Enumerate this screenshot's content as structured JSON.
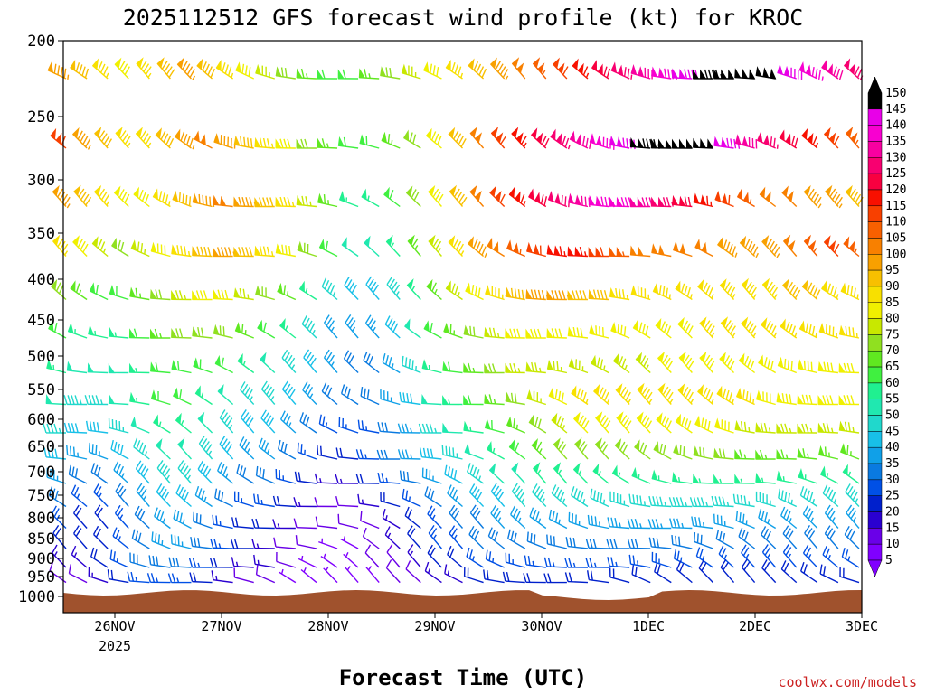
{
  "chart_data": {
    "type": "wind-barb profile",
    "title": "2025112512 GFS forecast wind profile (kt) for KROC",
    "xlabel": "Forecast Time (UTC)",
    "credit": "coolwx.com/models",
    "x_ticks": [
      "26NOV",
      "27NOV",
      "28NOV",
      "29NOV",
      "30NOV",
      "1DEC",
      "2DEC",
      "3DEC"
    ],
    "x_year_label": "2025",
    "y_ticks": [
      200,
      250,
      300,
      350,
      400,
      450,
      500,
      550,
      600,
      650,
      700,
      750,
      800,
      850,
      900,
      950,
      1000
    ],
    "y_unit": "hPa",
    "colorbar": {
      "ticks": [
        5,
        10,
        15,
        20,
        25,
        30,
        35,
        40,
        45,
        50,
        55,
        60,
        65,
        70,
        75,
        80,
        85,
        90,
        95,
        100,
        105,
        110,
        115,
        120,
        125,
        130,
        135,
        140,
        145,
        150
      ],
      "colors": [
        "#8000ff",
        "#6a00e8",
        "#2a00d0",
        "#0020cc",
        "#0050e6",
        "#0a7ae0",
        "#10a0e8",
        "#18c0e8",
        "#20d8cc",
        "#20e8b0",
        "#20f090",
        "#40f040",
        "#60e820",
        "#90e020",
        "#c8e800",
        "#f0f000",
        "#f8e000",
        "#f8c000",
        "#f8a000",
        "#f88000",
        "#f86000",
        "#f84000",
        "#f81000",
        "#f80040",
        "#f80070",
        "#f800a0",
        "#f800d0",
        "#e800e8",
        "#000000"
      ]
    },
    "levels": [
      {
        "p": 225,
        "speeds": [
          95,
          90,
          85,
          80,
          85,
          90,
          95,
          90,
          85,
          80,
          75,
          70,
          65,
          60,
          60,
          65,
          70,
          75,
          80,
          85,
          90,
          95,
          100,
          105,
          110,
          115,
          120,
          125,
          130,
          135,
          140,
          145,
          150,
          150,
          150,
          140,
          135,
          130,
          125
        ]
      },
      {
        "p": 275,
        "speeds": [
          110,
          95,
          90,
          85,
          85,
          90,
          95,
          100,
          95,
          90,
          85,
          80,
          70,
          65,
          60,
          60,
          65,
          70,
          80,
          90,
          100,
          110,
          115,
          120,
          125,
          130,
          135,
          140,
          145,
          150,
          150,
          150,
          140,
          130,
          125,
          120,
          115,
          110,
          105
        ]
      },
      {
        "p": 325,
        "speeds": [
          95,
          90,
          85,
          80,
          80,
          85,
          90,
          95,
          100,
          95,
          90,
          85,
          75,
          65,
          55,
          55,
          60,
          70,
          80,
          90,
          100,
          110,
          115,
          120,
          125,
          130,
          135,
          135,
          130,
          125,
          120,
          115,
          110,
          105,
          100,
          100,
          95,
          95,
          90
        ]
      },
      {
        "p": 375,
        "speeds": [
          85,
          80,
          75,
          70,
          75,
          80,
          85,
          90,
          95,
          90,
          85,
          80,
          70,
          60,
          50,
          50,
          55,
          65,
          75,
          85,
          95,
          100,
          105,
          110,
          115,
          115,
          110,
          105,
          100,
          100,
          100,
          100,
          95,
          95,
          95,
          100,
          105,
          110,
          105
        ]
      },
      {
        "p": 425,
        "speeds": [
          70,
          65,
          60,
          60,
          65,
          70,
          75,
          80,
          80,
          75,
          70,
          65,
          55,
          45,
          40,
          40,
          45,
          55,
          65,
          75,
          80,
          85,
          90,
          95,
          95,
          90,
          90,
          85,
          85,
          85,
          85,
          85,
          85,
          85,
          85,
          90,
          90,
          85,
          85
        ]
      },
      {
        "p": 475,
        "speeds": [
          60,
          55,
          55,
          55,
          60,
          65,
          70,
          70,
          70,
          65,
          60,
          55,
          45,
          35,
          35,
          35,
          40,
          50,
          60,
          65,
          70,
          75,
          80,
          80,
          80,
          80,
          80,
          80,
          80,
          80,
          80,
          85,
          85,
          85,
          85,
          85,
          85,
          85,
          85
        ]
      },
      {
        "p": 525,
        "speeds": [
          55,
          50,
          50,
          50,
          55,
          60,
          60,
          60,
          60,
          55,
          50,
          45,
          40,
          35,
          30,
          30,
          35,
          45,
          55,
          60,
          65,
          70,
          75,
          75,
          75,
          75,
          75,
          75,
          75,
          80,
          80,
          80,
          80,
          80,
          80,
          80,
          80,
          80,
          80
        ]
      },
      {
        "p": 575,
        "speeds": [
          50,
          45,
          45,
          50,
          55,
          60,
          60,
          55,
          50,
          45,
          45,
          40,
          35,
          30,
          30,
          30,
          35,
          40,
          50,
          55,
          60,
          65,
          70,
          75,
          80,
          85,
          85,
          85,
          85,
          85,
          85,
          85,
          85,
          85,
          80,
          80,
          80,
          80,
          80
        ]
      },
      {
        "p": 625,
        "speeds": [
          45,
          40,
          40,
          45,
          50,
          55,
          55,
          50,
          45,
          40,
          40,
          35,
          30,
          25,
          25,
          25,
          30,
          35,
          45,
          50,
          55,
          60,
          65,
          70,
          75,
          80,
          80,
          80,
          80,
          80,
          80,
          80,
          80,
          75,
          75,
          75,
          75,
          75,
          75
        ]
      },
      {
        "p": 675,
        "speeds": [
          40,
          35,
          35,
          40,
          45,
          50,
          50,
          45,
          40,
          35,
          35,
          30,
          25,
          20,
          20,
          25,
          30,
          35,
          40,
          45,
          50,
          55,
          60,
          65,
          70,
          70,
          70,
          70,
          70,
          70,
          70,
          70,
          70,
          65,
          65,
          65,
          65,
          65,
          65
        ]
      },
      {
        "p": 725,
        "speeds": [
          35,
          30,
          30,
          35,
          40,
          45,
          45,
          40,
          35,
          30,
          30,
          25,
          20,
          15,
          15,
          20,
          25,
          30,
          35,
          40,
          45,
          50,
          50,
          55,
          55,
          55,
          55,
          55,
          55,
          55,
          55,
          55,
          55,
          55,
          55,
          55,
          55,
          55,
          55
        ]
      },
      {
        "p": 775,
        "speeds": [
          30,
          25,
          25,
          30,
          35,
          40,
          40,
          35,
          30,
          25,
          25,
          20,
          15,
          10,
          10,
          15,
          20,
          25,
          30,
          35,
          40,
          40,
          45,
          45,
          45,
          45,
          45,
          45,
          45,
          45,
          45,
          45,
          45,
          45,
          45,
          45,
          45,
          45,
          45
        ]
      },
      {
        "p": 825,
        "speeds": [
          25,
          20,
          20,
          25,
          30,
          35,
          35,
          30,
          25,
          20,
          20,
          15,
          10,
          10,
          10,
          10,
          15,
          20,
          25,
          30,
          30,
          35,
          35,
          35,
          35,
          35,
          35,
          35,
          35,
          35,
          35,
          35,
          35,
          35,
          35,
          35,
          35,
          35,
          35
        ]
      },
      {
        "p": 875,
        "speeds": [
          20,
          20,
          20,
          25,
          30,
          35,
          35,
          30,
          25,
          20,
          15,
          10,
          10,
          5,
          5,
          10,
          15,
          20,
          25,
          25,
          30,
          30,
          30,
          30,
          30,
          30,
          30,
          30,
          30,
          30,
          30,
          30,
          30,
          30,
          30,
          30,
          30,
          30,
          30
        ]
      },
      {
        "p": 925,
        "speeds": [
          15,
          15,
          20,
          25,
          30,
          30,
          30,
          25,
          20,
          15,
          15,
          10,
          5,
          5,
          5,
          10,
          10,
          15,
          20,
          20,
          25,
          25,
          25,
          25,
          25,
          25,
          25,
          25,
          25,
          25,
          25,
          25,
          25,
          25,
          25,
          25,
          25,
          25,
          25
        ]
      },
      {
        "p": 965,
        "speeds": [
          10,
          10,
          15,
          20,
          25,
          25,
          25,
          20,
          15,
          10,
          10,
          5,
          5,
          5,
          5,
          5,
          10,
          10,
          15,
          15,
          20,
          20,
          20,
          20,
          20,
          20,
          20,
          20,
          20,
          20,
          20,
          20,
          20,
          20,
          20,
          20,
          20,
          20,
          20
        ]
      }
    ]
  }
}
